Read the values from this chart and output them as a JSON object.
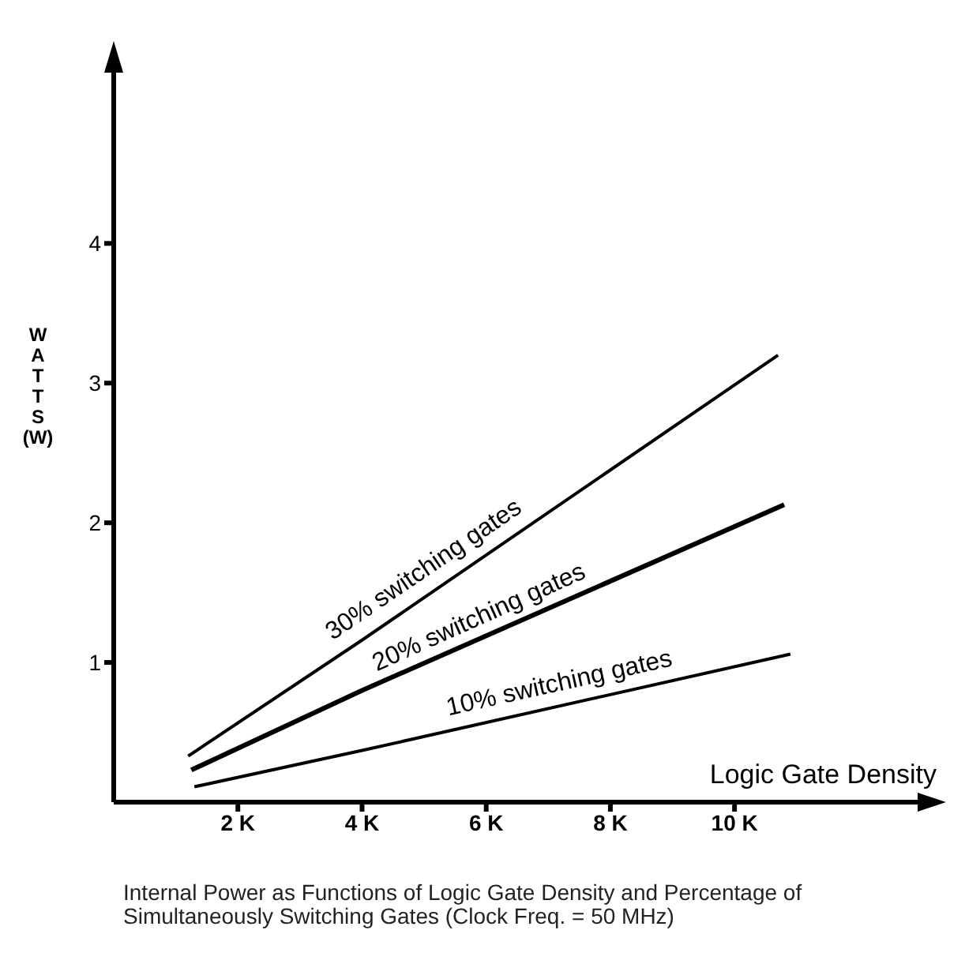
{
  "chart_data": {
    "type": "line",
    "xlabel": "Logic Gate Density",
    "ylabel": "WATTS (W)",
    "xlim": [
      0,
      13000
    ],
    "ylim": [
      0,
      5.2
    ],
    "xticks": [
      {
        "value": 2000,
        "label": "2 K"
      },
      {
        "value": 4000,
        "label": "4 K"
      },
      {
        "value": 6000,
        "label": "6 K"
      },
      {
        "value": 8000,
        "label": "8 K"
      },
      {
        "value": 10000,
        "label": "10 K"
      }
    ],
    "yticks": [
      1,
      2,
      3,
      4
    ],
    "grid": false,
    "marker": "none",
    "line_style": "solid",
    "series": [
      {
        "name": "10% switching gates",
        "color": "#000000",
        "x": [
          1300,
          4000,
          10900
        ],
        "values": [
          0.11,
          0.37,
          1.06
        ]
      },
      {
        "name": "20% switching gates",
        "color": "#000000",
        "x": [
          1250,
          4000,
          10800
        ],
        "values": [
          0.23,
          0.8,
          2.13
        ]
      },
      {
        "name": "30% switching gates",
        "color": "#000000",
        "x": [
          1200,
          4000,
          10700
        ],
        "values": [
          0.33,
          1.16,
          3.2
        ]
      }
    ],
    "annotations": [
      "Internal Power as Functions of Logic Gate Density and Percentage of Simultaneously Switching Gates (Clock Freq. = 50 MHz)"
    ]
  }
}
